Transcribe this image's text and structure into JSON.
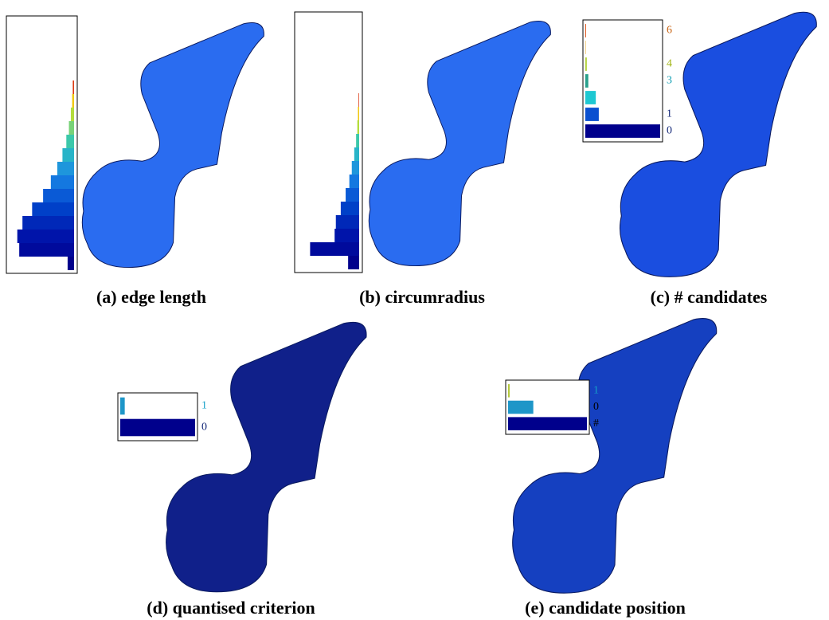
{
  "panels": [
    {
      "caption": "(a) edge length",
      "histogram": {
        "align": "right",
        "bars": [
          {
            "value": 10,
            "color": "#00008c"
          },
          {
            "value": 85,
            "color": "#000a9c"
          },
          {
            "value": 88,
            "color": "#0014aa"
          },
          {
            "value": 80,
            "color": "#0028b8"
          },
          {
            "value": 65,
            "color": "#0040c8"
          },
          {
            "value": 48,
            "color": "#0a5ad6"
          },
          {
            "value": 36,
            "color": "#1478e0"
          },
          {
            "value": 26,
            "color": "#1e96dc"
          },
          {
            "value": 18,
            "color": "#28b4c8"
          },
          {
            "value": 12,
            "color": "#3cc8aa"
          },
          {
            "value": 8,
            "color": "#78d278"
          },
          {
            "value": 5,
            "color": "#b4dc3c"
          },
          {
            "value": 3,
            "color": "#f0c814"
          },
          {
            "value": 2,
            "color": "#dc3c14"
          }
        ]
      }
    },
    {
      "caption": "(b) circumradius",
      "histogram": {
        "align": "right",
        "bars": [
          {
            "value": 18,
            "color": "#00008c"
          },
          {
            "value": 80,
            "color": "#000a9c"
          },
          {
            "value": 40,
            "color": "#0014aa"
          },
          {
            "value": 38,
            "color": "#0028b8"
          },
          {
            "value": 30,
            "color": "#0040c8"
          },
          {
            "value": 22,
            "color": "#0a5ad6"
          },
          {
            "value": 16,
            "color": "#1478e0"
          },
          {
            "value": 12,
            "color": "#1e96dc"
          },
          {
            "value": 8,
            "color": "#28b4c8"
          },
          {
            "value": 5,
            "color": "#3cc8aa"
          },
          {
            "value": 3,
            "color": "#b4dc3c"
          },
          {
            "value": 2,
            "color": "#f0c814"
          },
          {
            "value": 1,
            "color": "#dc3c14"
          }
        ]
      }
    },
    {
      "caption": "(c) # candidates",
      "histogram": {
        "align": "left",
        "bars": [
          {
            "label": "0",
            "value": 100,
            "color": "#00008c",
            "label_color": "#142878"
          },
          {
            "label": "1",
            "value": 18,
            "color": "#0a50d0",
            "label_color": "#142878"
          },
          {
            "value": 14,
            "color": "#1ec8d2"
          },
          {
            "label": "3",
            "value": 4,
            "color": "#28a08c",
            "label_color": "#14a0b4"
          },
          {
            "label": "4",
            "value": 2,
            "color": "#b4d23c",
            "label_color": "#a0b414"
          },
          {
            "value": 0.5,
            "color": "#e6a014"
          },
          {
            "label": "6",
            "value": 1,
            "color": "#dc5014",
            "label_color": "#c86414"
          }
        ]
      }
    },
    {
      "caption": "(d) quantised criterion",
      "histogram": {
        "align": "left",
        "bars": [
          {
            "label": "0",
            "value": 100,
            "color": "#00008c",
            "label_color": "#142878"
          },
          {
            "label": "1",
            "value": 6,
            "color": "#1e96c8",
            "label_color": "#14a0c8"
          }
        ]
      }
    },
    {
      "caption": "(e) candidate position",
      "histogram": {
        "align": "left",
        "bars": [
          {
            "label": "#",
            "value": 100,
            "color": "#00008c",
            "label_color": "#000000"
          },
          {
            "label": "0",
            "value": 32,
            "color": "#1e96c8",
            "label_color": "#000000"
          },
          {
            "label": "1",
            "value": 2,
            "color": "#b4c83c",
            "label_color": "#14a0c8"
          }
        ]
      }
    }
  ]
}
